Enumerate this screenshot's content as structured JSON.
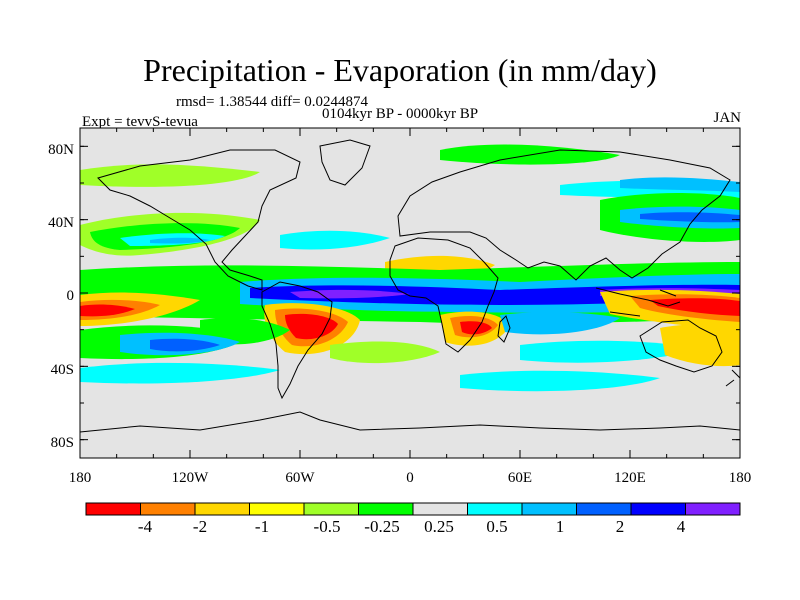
{
  "title": "Precipitation - Evaporation (in mm/day)",
  "stats_line": "rmsd= 1.38544 diff= 0.0244874",
  "period_line": "0104kyr BP - 0000kyr BP",
  "experiment_line": "Expt = tevvS-tevua",
  "month": "JAN",
  "map": {
    "projection": "cylindrical equidistant",
    "lon_range": [
      -180,
      180
    ],
    "lat_range": [
      -90,
      90
    ],
    "background_color": "#e4e4e4",
    "x_tick_labels": [
      "180",
      "120W",
      "60W",
      "0",
      "60E",
      "120E",
      "180"
    ],
    "y_tick_labels": [
      "80N",
      "40N",
      "0",
      "40S",
      "80S"
    ]
  },
  "colorbar": {
    "colors": [
      "#ff0000",
      "#ff8000",
      "#ffd700",
      "#ffff00",
      "#a0ff28",
      "#00ff00",
      "#e4e4e4",
      "#00ffff",
      "#00c0ff",
      "#0060ff",
      "#0000ff",
      "#8020ff"
    ],
    "labels": [
      "-4",
      "-2",
      "-1",
      "-0.5",
      "-0.25",
      "0.25",
      "0.5",
      "1",
      "2",
      "4"
    ]
  }
}
